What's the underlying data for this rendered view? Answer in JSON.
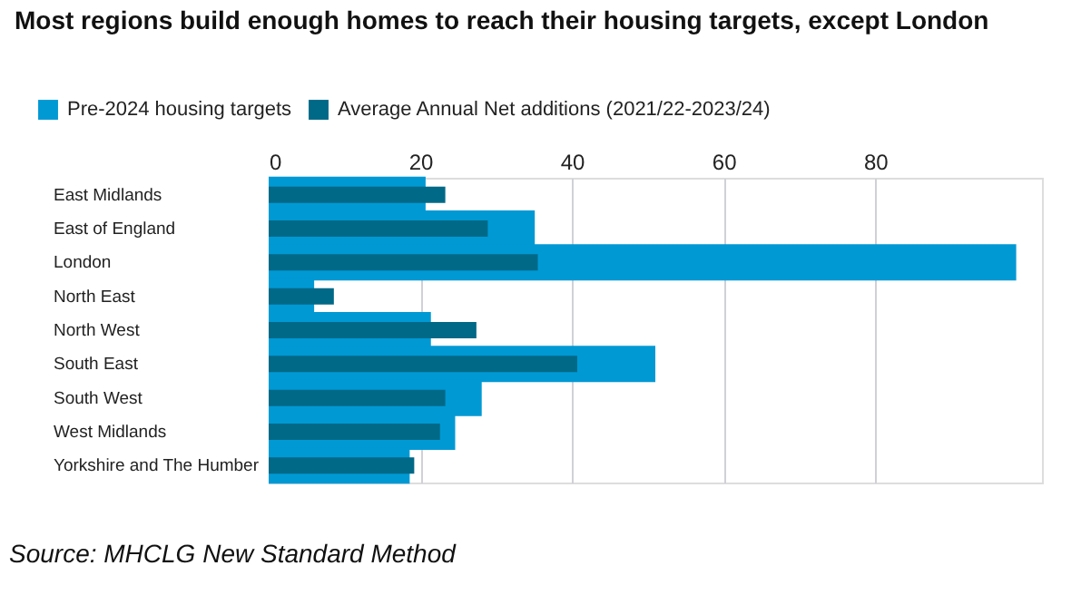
{
  "chart_data": {
    "type": "bar",
    "orientation": "horizontal",
    "title": "Most regions build enough homes to reach their housing targets, except London",
    "categories": [
      "East Midlands",
      "East of England",
      "London",
      "North East",
      "North West",
      "South East",
      "South West",
      "West Midlands",
      "Yorkshire and The Humber"
    ],
    "series": [
      {
        "name": "Pre-2024 housing targets",
        "color": "#0099d4",
        "values": [
          20.7,
          35.1,
          98.6,
          6.0,
          21.4,
          51.0,
          28.1,
          24.6,
          18.6
        ]
      },
      {
        "name": "Average Annual Net additions (2021/22-2023/24)",
        "color": "#006987",
        "values": [
          23.3,
          28.9,
          35.5,
          8.6,
          27.4,
          40.7,
          23.3,
          22.6,
          19.2
        ]
      }
    ],
    "xlim": [
      0,
      102
    ],
    "xticks": [
      0,
      20,
      40,
      60,
      80
    ],
    "grid": "x",
    "legend": "top left",
    "annotations": [
      "Source: MHCLG New Standard Method"
    ]
  }
}
